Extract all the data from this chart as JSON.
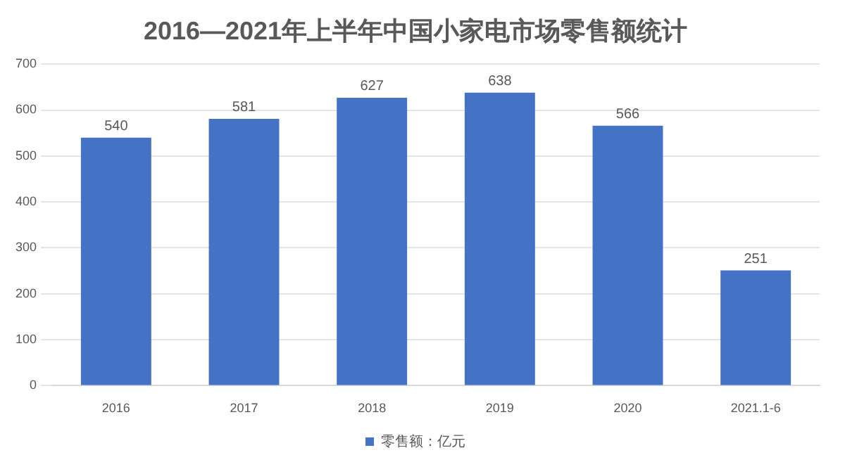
{
  "chart_data": {
    "type": "bar",
    "title": "2016—2021年上半年中国小家电市场零售额统计",
    "categories": [
      "2016",
      "2017",
      "2018",
      "2019",
      "2020",
      "2021.1-6"
    ],
    "series": [
      {
        "name": "零售额：亿元",
        "color": "#4472c4",
        "values": [
          540,
          581,
          627,
          638,
          566,
          251
        ]
      }
    ],
    "ylim": [
      0,
      700
    ],
    "yticks": [
      0,
      100,
      200,
      300,
      400,
      500,
      600,
      700
    ],
    "grid": "y",
    "legend": "bottom",
    "data_labels": true
  }
}
